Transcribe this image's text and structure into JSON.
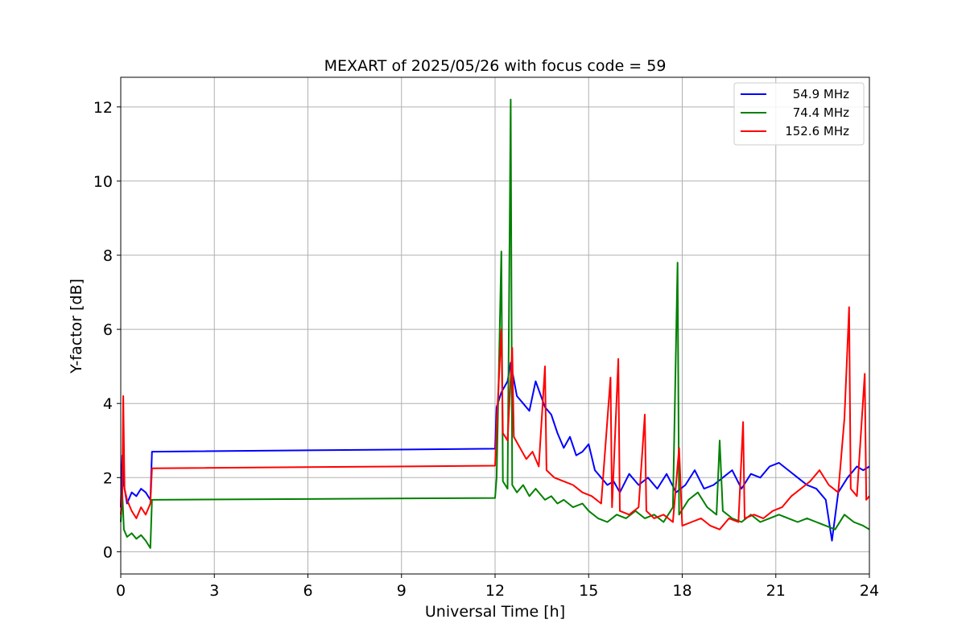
{
  "chart_data": {
    "type": "line",
    "title": "MEXART of 2025/05/26 with focus code = 59",
    "xlabel": "Universal Time [h]",
    "ylabel": "Y-factor [dB]",
    "xlim": [
      0,
      24
    ],
    "ylim": [
      -0.6,
      12.8
    ],
    "xticks": [
      0,
      3,
      6,
      9,
      12,
      15,
      18,
      21,
      24
    ],
    "yticks": [
      0,
      2,
      4,
      6,
      8,
      10,
      12
    ],
    "grid": true,
    "legend_position": "top-right",
    "series": [
      {
        "name": "54.9 MHz",
        "color": "#0000ff",
        "points": [
          [
            0.0,
            1.2
          ],
          [
            0.05,
            2.6
          ],
          [
            0.1,
            1.8
          ],
          [
            0.2,
            1.3
          ],
          [
            0.35,
            1.6
          ],
          [
            0.5,
            1.5
          ],
          [
            0.65,
            1.7
          ],
          [
            0.8,
            1.6
          ],
          [
            0.95,
            1.4
          ],
          [
            1.0,
            2.7
          ],
          [
            12.0,
            2.78
          ],
          [
            12.05,
            3.9
          ],
          [
            12.2,
            4.3
          ],
          [
            12.4,
            4.6
          ],
          [
            12.5,
            5.1
          ],
          [
            12.7,
            4.2
          ],
          [
            12.9,
            4.0
          ],
          [
            13.1,
            3.8
          ],
          [
            13.3,
            4.6
          ],
          [
            13.6,
            3.9
          ],
          [
            13.8,
            3.7
          ],
          [
            14.0,
            3.2
          ],
          [
            14.2,
            2.8
          ],
          [
            14.4,
            3.1
          ],
          [
            14.6,
            2.6
          ],
          [
            14.8,
            2.7
          ],
          [
            15.0,
            2.9
          ],
          [
            15.2,
            2.2
          ],
          [
            15.4,
            2.0
          ],
          [
            15.6,
            1.8
          ],
          [
            15.8,
            1.9
          ],
          [
            16.0,
            1.6
          ],
          [
            16.3,
            2.1
          ],
          [
            16.6,
            1.8
          ],
          [
            16.9,
            2.0
          ],
          [
            17.2,
            1.7
          ],
          [
            17.5,
            2.1
          ],
          [
            17.8,
            1.6
          ],
          [
            18.1,
            1.8
          ],
          [
            18.4,
            2.2
          ],
          [
            18.7,
            1.7
          ],
          [
            19.0,
            1.8
          ],
          [
            19.3,
            2.0
          ],
          [
            19.6,
            2.2
          ],
          [
            19.9,
            1.7
          ],
          [
            20.2,
            2.1
          ],
          [
            20.5,
            2.0
          ],
          [
            20.8,
            2.3
          ],
          [
            21.1,
            2.4
          ],
          [
            21.4,
            2.2
          ],
          [
            21.7,
            2.0
          ],
          [
            22.0,
            1.8
          ],
          [
            22.3,
            1.7
          ],
          [
            22.6,
            1.4
          ],
          [
            22.8,
            0.3
          ],
          [
            23.0,
            1.6
          ],
          [
            23.3,
            2.0
          ],
          [
            23.6,
            2.3
          ],
          [
            23.8,
            2.2
          ],
          [
            24.0,
            2.3
          ]
        ]
      },
      {
        "name": "74.4 MHz",
        "color": "#008000",
        "points": [
          [
            0.0,
            0.8
          ],
          [
            0.05,
            1.6
          ],
          [
            0.1,
            0.6
          ],
          [
            0.2,
            0.4
          ],
          [
            0.35,
            0.5
          ],
          [
            0.5,
            0.35
          ],
          [
            0.65,
            0.45
          ],
          [
            0.8,
            0.3
          ],
          [
            0.95,
            0.1
          ],
          [
            1.0,
            1.4
          ],
          [
            12.0,
            1.45
          ],
          [
            12.05,
            2.0
          ],
          [
            12.2,
            8.1
          ],
          [
            12.25,
            1.9
          ],
          [
            12.4,
            1.7
          ],
          [
            12.5,
            12.2
          ],
          [
            12.55,
            1.8
          ],
          [
            12.7,
            1.6
          ],
          [
            12.9,
            1.8
          ],
          [
            13.1,
            1.5
          ],
          [
            13.3,
            1.7
          ],
          [
            13.6,
            1.4
          ],
          [
            13.8,
            1.5
          ],
          [
            14.0,
            1.3
          ],
          [
            14.2,
            1.4
          ],
          [
            14.5,
            1.2
          ],
          [
            14.8,
            1.3
          ],
          [
            15.0,
            1.1
          ],
          [
            15.3,
            0.9
          ],
          [
            15.6,
            0.8
          ],
          [
            15.9,
            1.0
          ],
          [
            16.2,
            0.9
          ],
          [
            16.5,
            1.1
          ],
          [
            16.8,
            0.9
          ],
          [
            17.1,
            1.0
          ],
          [
            17.4,
            0.8
          ],
          [
            17.7,
            1.2
          ],
          [
            17.85,
            7.8
          ],
          [
            17.9,
            1.0
          ],
          [
            18.2,
            1.4
          ],
          [
            18.5,
            1.6
          ],
          [
            18.8,
            1.2
          ],
          [
            19.1,
            1.0
          ],
          [
            19.2,
            3.0
          ],
          [
            19.3,
            1.1
          ],
          [
            19.6,
            0.9
          ],
          [
            19.9,
            0.8
          ],
          [
            20.2,
            1.0
          ],
          [
            20.5,
            0.8
          ],
          [
            20.8,
            0.9
          ],
          [
            21.1,
            1.0
          ],
          [
            21.4,
            0.9
          ],
          [
            21.7,
            0.8
          ],
          [
            22.0,
            0.9
          ],
          [
            22.3,
            0.8
          ],
          [
            22.6,
            0.7
          ],
          [
            22.9,
            0.6
          ],
          [
            23.2,
            1.0
          ],
          [
            23.5,
            0.8
          ],
          [
            23.8,
            0.7
          ],
          [
            24.0,
            0.6
          ]
        ]
      },
      {
        "name": "152.6 MHz",
        "color": "#ff0000",
        "points": [
          [
            0.0,
            1.0
          ],
          [
            0.05,
            1.5
          ],
          [
            0.08,
            4.2
          ],
          [
            0.12,
            1.7
          ],
          [
            0.2,
            1.4
          ],
          [
            0.35,
            1.1
          ],
          [
            0.5,
            0.9
          ],
          [
            0.65,
            1.2
          ],
          [
            0.8,
            1.0
          ],
          [
            0.95,
            1.3
          ],
          [
            1.0,
            2.25
          ],
          [
            12.0,
            2.32
          ],
          [
            12.05,
            3.4
          ],
          [
            12.2,
            6.0
          ],
          [
            12.25,
            3.2
          ],
          [
            12.4,
            3.0
          ],
          [
            12.55,
            5.5
          ],
          [
            12.6,
            3.1
          ],
          [
            12.8,
            2.8
          ],
          [
            13.0,
            2.5
          ],
          [
            13.2,
            2.7
          ],
          [
            13.4,
            2.3
          ],
          [
            13.6,
            5.0
          ],
          [
            13.65,
            2.2
          ],
          [
            13.9,
            2.0
          ],
          [
            14.2,
            1.9
          ],
          [
            14.5,
            1.8
          ],
          [
            14.8,
            1.6
          ],
          [
            15.1,
            1.5
          ],
          [
            15.4,
            1.3
          ],
          [
            15.7,
            4.7
          ],
          [
            15.75,
            1.2
          ],
          [
            15.95,
            5.2
          ],
          [
            16.0,
            1.1
          ],
          [
            16.3,
            1.0
          ],
          [
            16.6,
            1.2
          ],
          [
            16.8,
            3.7
          ],
          [
            16.85,
            1.1
          ],
          [
            17.1,
            0.9
          ],
          [
            17.4,
            1.0
          ],
          [
            17.7,
            0.8
          ],
          [
            17.9,
            2.8
          ],
          [
            18.0,
            0.7
          ],
          [
            18.3,
            0.8
          ],
          [
            18.6,
            0.9
          ],
          [
            18.9,
            0.7
          ],
          [
            19.2,
            0.6
          ],
          [
            19.5,
            0.9
          ],
          [
            19.8,
            0.8
          ],
          [
            19.95,
            3.5
          ],
          [
            20.0,
            0.9
          ],
          [
            20.3,
            1.0
          ],
          [
            20.6,
            0.9
          ],
          [
            20.9,
            1.1
          ],
          [
            21.2,
            1.2
          ],
          [
            21.5,
            1.5
          ],
          [
            21.8,
            1.7
          ],
          [
            22.1,
            1.9
          ],
          [
            22.4,
            2.2
          ],
          [
            22.7,
            1.8
          ],
          [
            23.0,
            1.6
          ],
          [
            23.2,
            3.6
          ],
          [
            23.35,
            6.6
          ],
          [
            23.4,
            1.7
          ],
          [
            23.6,
            1.5
          ],
          [
            23.85,
            4.8
          ],
          [
            23.9,
            1.4
          ],
          [
            24.0,
            1.5
          ]
        ]
      }
    ]
  }
}
